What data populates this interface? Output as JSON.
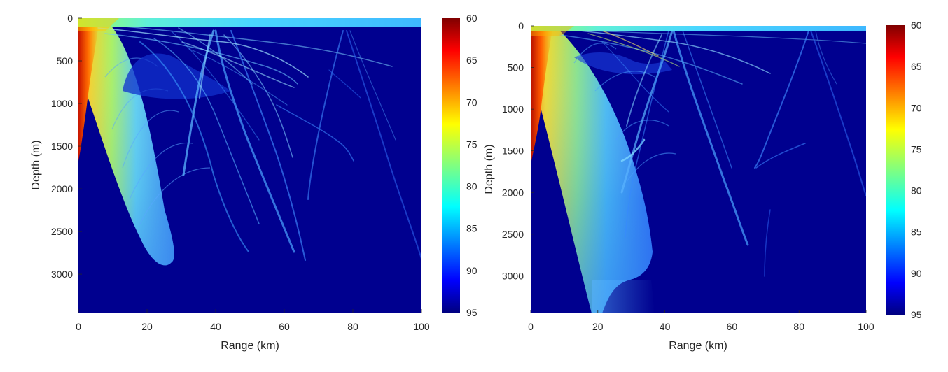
{
  "chart_data": [
    {
      "type": "heatmap",
      "title": "",
      "xlabel": "Range (km)",
      "ylabel": "Depth (m)",
      "xlim": [
        0,
        100
      ],
      "ylim": [
        0,
        3450
      ],
      "y_reversed": true,
      "x_ticks": [
        0,
        20,
        40,
        60,
        80,
        100
      ],
      "y_ticks": [
        0,
        500,
        1000,
        1500,
        2000,
        2500,
        3000
      ],
      "colorbar": {
        "range": [
          60,
          95
        ],
        "reversed": true,
        "ticks": [
          60,
          65,
          70,
          75,
          80,
          85,
          90,
          95
        ],
        "colormap": "jet"
      },
      "features": {
        "convergence_zone_ranges_km": [
          0,
          39,
          78
        ],
        "main_caustic_bottom": {
          "range_km": 23,
          "depth_m": 2900
        },
        "second_caustic_bottom": {
          "range_km": 65,
          "depth_m": 2850
        },
        "surface_duct_depth_m": 100
      }
    },
    {
      "type": "heatmap",
      "title": "",
      "xlabel": "Range (km)",
      "ylabel": "Depth (m)",
      "xlim": [
        0,
        100
      ],
      "ylim": [
        0,
        3450
      ],
      "y_reversed": true,
      "x_ticks": [
        0,
        20,
        40,
        60,
        80,
        100
      ],
      "y_ticks": [
        0,
        500,
        1000,
        1500,
        2000,
        2500,
        3000
      ],
      "colorbar": {
        "range": [
          60,
          95
        ],
        "reversed": true,
        "ticks": [
          60,
          65,
          70,
          75,
          80,
          85,
          90,
          95
        ],
        "colormap": "jet"
      },
      "features": {
        "convergence_zone_ranges_km": [
          0,
          42,
          83
        ],
        "main_caustic_bottom": {
          "range_km": 19,
          "depth_m": 3450
        },
        "second_caustic_bottom": {
          "range_km": 70,
          "depth_m": 3000
        },
        "surface_duct_depth_m": 60
      }
    }
  ],
  "colors": {
    "background_level": "#00008f",
    "text": "#262626"
  }
}
